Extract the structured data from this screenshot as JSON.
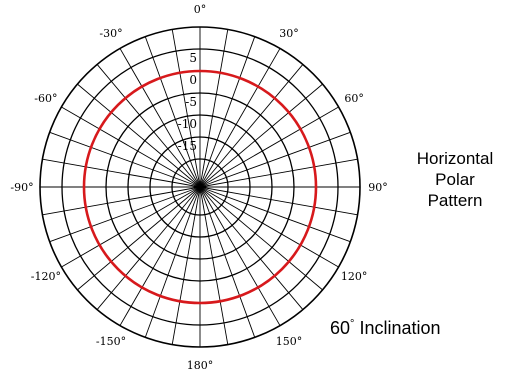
{
  "chart_data": {
    "type": "polar",
    "title": [
      "Horizontal",
      "Polar",
      "Pattern"
    ],
    "caption": {
      "value": "60",
      "degree": "°",
      "text": "Inclination"
    },
    "radial_rings_db": [
      5,
      0,
      -5,
      -10,
      -15
    ],
    "radial_ring_labels": [
      "5",
      "0",
      "-5",
      "-10",
      "-15"
    ],
    "radial_range_db": [
      -20,
      10
    ],
    "spoke_step_deg": 10,
    "angle_labels": [
      {
        "angle": 0,
        "text": "0°"
      },
      {
        "angle": 30,
        "text": "30°"
      },
      {
        "angle": 60,
        "text": "60°"
      },
      {
        "angle": 90,
        "text": "90°"
      },
      {
        "angle": 120,
        "text": "120°"
      },
      {
        "angle": 150,
        "text": "150°"
      },
      {
        "angle": 180,
        "text": "180°"
      },
      {
        "angle": -150,
        "text": "-150°"
      },
      {
        "angle": -120,
        "text": "-120°"
      },
      {
        "angle": -90,
        "text": "-90°"
      },
      {
        "angle": -60,
        "text": "-60°"
      },
      {
        "angle": -30,
        "text": "-30°"
      }
    ],
    "series": [
      {
        "level_db": 0,
        "color": "#d7191c"
      }
    ]
  }
}
